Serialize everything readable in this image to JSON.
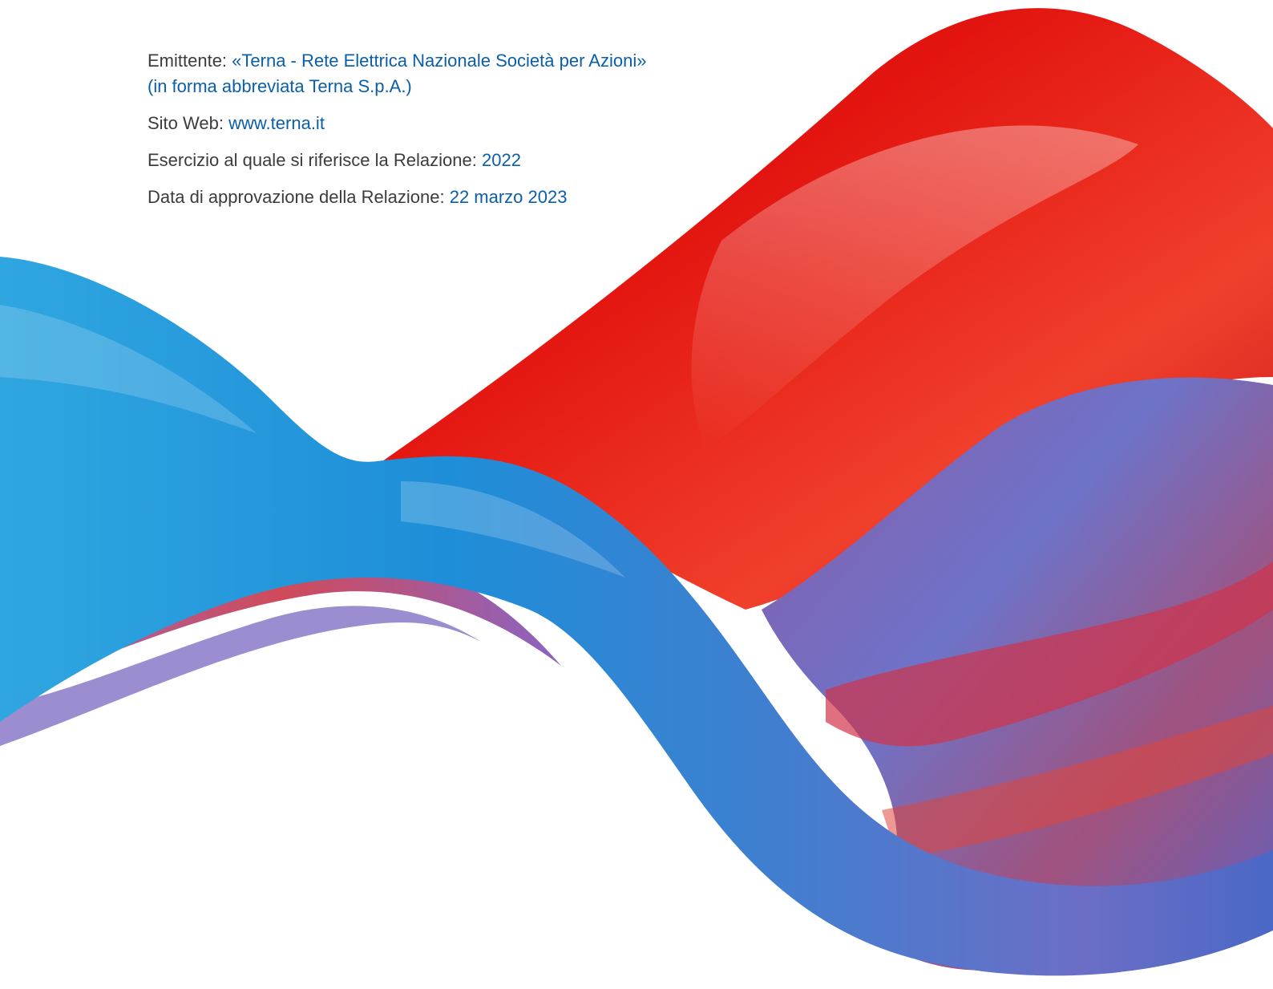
{
  "info": {
    "issuer_label": "Emittente:",
    "issuer_value": "«Terna - Rete Elettrica Nazionale Società per Azioni»",
    "issuer_value_line2": "(in forma abbreviata Terna S.p.A.)",
    "website_label": "Sito Web:",
    "website_value": "www.terna.it",
    "fiscal_year_label": "Esercizio al quale si riferisce la Relazione:",
    "fiscal_year_value": "2022",
    "approval_date_label": "Data di approvazione della Relazione:",
    "approval_date_value": "22 marzo 2023"
  },
  "colors": {
    "label_text": "#3c3c3b",
    "value_text": "#0b5ea8",
    "ribbon_red": "#e3140f",
    "ribbon_blue": "#1f8fd6",
    "ribbon_purple": "#6d6fc4"
  }
}
